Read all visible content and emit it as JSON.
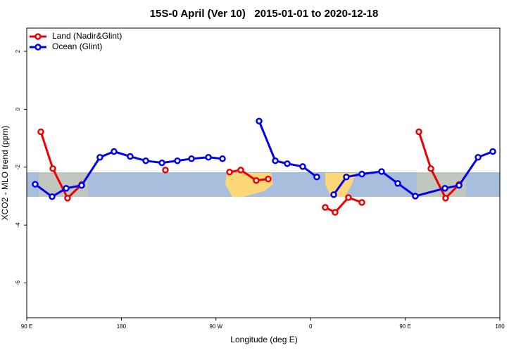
{
  "chart_data": {
    "type": "line",
    "title": "15S-0 April (Ver 10)   2015-01-01 to 2020-12-18",
    "x_label": "Longitude (deg E)",
    "y_label": "XCO2 - MLO trend (ppm)",
    "xlim": [
      90,
      540
    ],
    "ylim": [
      -7.2,
      2.8
    ],
    "xticks": [
      {
        "value": 90,
        "label": "90 E"
      },
      {
        "value": 180,
        "label": "180"
      },
      {
        "value": 270,
        "label": "90 W"
      },
      {
        "value": 360,
        "label": "0"
      },
      {
        "value": 450,
        "label": "90 E"
      },
      {
        "value": 540,
        "label": "180"
      }
    ],
    "yticks": [
      2,
      0,
      -2,
      -4,
      -6
    ],
    "legend": "top-left",
    "series": [
      {
        "name": "Land (Nadir&Glint)",
        "color": "#ee0000",
        "x": [
          103.4,
          114.8,
          128.8,
          142.2,
          null,
          221.9,
          null,
          282.9,
          293.6,
          308.3,
          319.7,
          null,
          373.9,
          383.3,
          396,
          408.8,
          null,
          463,
          474.4,
          488.4,
          501.2
        ],
        "values": [
          -0.78,
          -2.05,
          -3.07,
          -2.6,
          null,
          -2.1,
          null,
          -2.17,
          -2.1,
          -2.46,
          -2.41,
          null,
          -3.39,
          -3.56,
          -3.05,
          -3.22,
          null,
          -0.78,
          -2.05,
          -3.07,
          -2.6
        ]
      },
      {
        "name": "Ocean (Glint)",
        "color": "#0000ee",
        "x": [
          98,
          114.1,
          127.5,
          142.2,
          159.6,
          173,
          188.4,
          203.2,
          218.6,
          233.3,
          246.7,
          262.8,
          276.2,
          null,
          311,
          326.4,
          337.8,
          352.5,
          365.9,
          null,
          382,
          394,
          408.8,
          427.5,
          442.9,
          459.6,
          487.8,
          501.2,
          519.3,
          533.3
        ],
        "values": [
          -2.59,
          -3.02,
          -2.73,
          -2.63,
          -1.66,
          -1.46,
          -1.63,
          -1.78,
          -1.85,
          -1.78,
          -1.71,
          -1.66,
          -1.71,
          null,
          -0.41,
          -1.78,
          -1.88,
          -1.98,
          -2.34,
          null,
          -2.95,
          -2.34,
          -2.24,
          -2.15,
          -2.56,
          -3.0,
          -2.73,
          -2.63,
          -1.66,
          -1.46
        ]
      }
    ]
  }
}
